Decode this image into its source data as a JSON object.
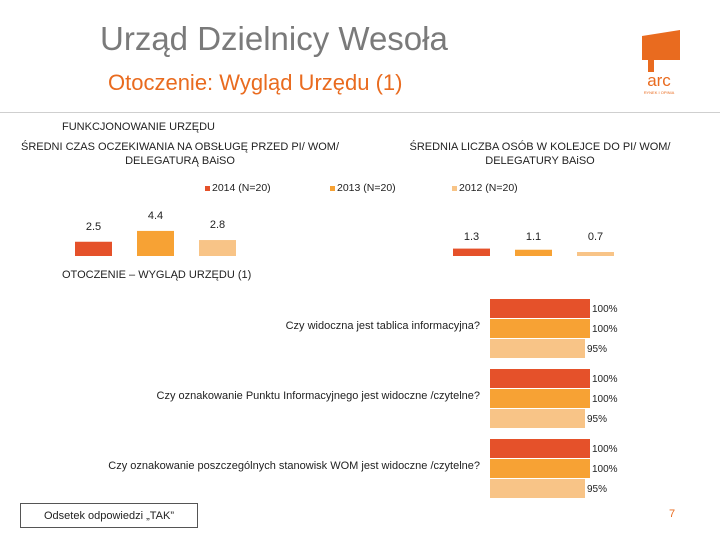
{
  "header": {
    "title": "Urząd Dzielnicy Wesoła",
    "subtitle": "Otoczenie: Wygląd Urzędu (1)",
    "logo_text": "arc",
    "logo_tagline": "RYNEK I OPINIA"
  },
  "colors": {
    "accent": "#e96b1f",
    "s2014": "#e5512a",
    "s2013": "#f7a234",
    "s2012": "#f8c487"
  },
  "section1": {
    "heading": "FUNKCJONOWANIE URZĘDU",
    "left_title": "ŚREDNI CZAS OCZEKIWANIA NA OBSŁUGĘ PRZED PI/ WOM/ DELEGATURĄ BAiSO",
    "right_title": "ŚREDNIA LICZBA OSÓB W KOLEJCE DO PI/ WOM/ DELEGATURY BAiSO",
    "legend": [
      "2014 (N=20)",
      "2013 (N=20)",
      "2012 (N=20)"
    ]
  },
  "section2": {
    "heading": "OTOCZENIE – WYGLĄD URZĘDU (1)"
  },
  "footnote": "Odsetek odpowiedzi „TAK”",
  "page_number": "7",
  "chart_data": [
    {
      "type": "bar",
      "title": "ŚREDNI CZAS OCZEKIWANIA NA OBSŁUGĘ PRZED PI/ WOM/ DELEGATURĄ BAiSO",
      "categories": [
        "2014 (N=20)",
        "2013 (N=20)",
        "2012 (N=20)"
      ],
      "values": [
        2.5,
        4.4,
        2.8
      ],
      "labels": [
        "2.5",
        "4.4",
        "2.8"
      ]
    },
    {
      "type": "bar",
      "title": "ŚREDNIA LICZBA OSÓB W KOLEJCE DO PI/ WOM/ DELEGATURY BAiSO",
      "categories": [
        "2014 (N=20)",
        "2013 (N=20)",
        "2012 (N=20)"
      ],
      "values": [
        1.3,
        1.1,
        0.7
      ],
      "labels": [
        "1.3",
        "1.1",
        "0.7"
      ]
    },
    {
      "type": "bar",
      "orientation": "horizontal",
      "categories": [
        "Czy widoczna jest tablica informacyjna?",
        "Czy oznakowanie Punktu Informacyjnego jest widoczne /czytelne?",
        "Czy oznakowanie poszczególnych stanowisk WOM jest widoczne /czytelne?"
      ],
      "series": [
        {
          "name": "2014 (N=20)",
          "values": [
            100,
            100,
            100
          ],
          "labels": [
            "100%",
            "100%",
            "100%"
          ]
        },
        {
          "name": "2013 (N=20)",
          "values": [
            100,
            100,
            100
          ],
          "labels": [
            "100%",
            "100%",
            "100%"
          ]
        },
        {
          "name": "2012 (N=20)",
          "values": [
            95,
            95,
            95
          ],
          "labels": [
            "95%",
            "95%",
            "95%"
          ]
        }
      ],
      "xlim": [
        0,
        100
      ]
    }
  ]
}
